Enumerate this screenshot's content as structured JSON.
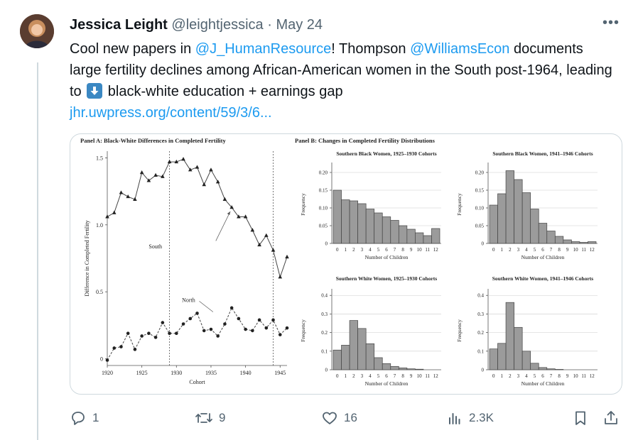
{
  "author": {
    "name": "Jessica Leight",
    "handle": "@leightjessica",
    "separator": "·",
    "date": "May 24"
  },
  "tweet": {
    "part1": "Cool new papers in ",
    "mention1": "@J_HumanResource",
    "part2": "!  Thompson ",
    "mention2": "@WilliamsEcon",
    "part3": " documents large fertility declines among African-American women in the South post-1964, leading to ",
    "part4": " black-white education + earnings gap",
    "link": "jhr.uwpress.org/content/59/3/6..."
  },
  "actions": {
    "replies": "1",
    "reposts": "9",
    "likes": "16",
    "views": "2.3K"
  },
  "icons": {
    "more": "more-icon",
    "reply": "reply-icon",
    "repost": "repost-icon",
    "like": "heart-icon",
    "views": "views-icon",
    "bookmark": "bookmark-icon",
    "share": "share-icon",
    "emoji": "down-arrow-emoji-icon"
  },
  "chart_data": [
    {
      "type": "line",
      "title": "Panel A: Black-White Differences in Completed Fertility",
      "xlabel": "Cohort",
      "ylabel": "Difference in Completed Fertility",
      "xlim": [
        1920,
        1946
      ],
      "ylim": [
        -0.05,
        1.55
      ],
      "xticks": [
        1920,
        1925,
        1930,
        1935,
        1940,
        1945
      ],
      "yticks": [
        0,
        0.5,
        1.0,
        1.5
      ],
      "ytick_labels": [
        "0",
        "0.5",
        "1.0",
        "1.5"
      ],
      "vlines": [
        1929,
        1944
      ],
      "x": [
        1920,
        1921,
        1922,
        1923,
        1924,
        1925,
        1926,
        1927,
        1928,
        1929,
        1930,
        1931,
        1932,
        1933,
        1934,
        1935,
        1936,
        1937,
        1938,
        1939,
        1940,
        1941,
        1942,
        1943,
        1944,
        1945,
        1946
      ],
      "series": [
        {
          "name": "South",
          "values": [
            1.06,
            1.09,
            1.24,
            1.21,
            1.19,
            1.39,
            1.33,
            1.37,
            1.36,
            1.47,
            1.47,
            1.49,
            1.41,
            1.43,
            1.3,
            1.41,
            1.32,
            1.19,
            1.13,
            1.06,
            1.06,
            0.96,
            0.85,
            0.92,
            0.81,
            0.61,
            0.76
          ]
        },
        {
          "name": "North",
          "values": [
            -0.01,
            0.08,
            0.09,
            0.19,
            0.07,
            0.17,
            0.19,
            0.16,
            0.27,
            0.19,
            0.19,
            0.26,
            0.3,
            0.34,
            0.21,
            0.22,
            0.17,
            0.26,
            0.38,
            0.3,
            0.22,
            0.21,
            0.29,
            0.23,
            0.29,
            0.18,
            0.23
          ]
        }
      ],
      "annotations": [
        {
          "text": "South",
          "x": 1933,
          "y": 0.84
        },
        {
          "text": "North",
          "x": 1934,
          "y": 0.44
        }
      ]
    },
    {
      "type": "bar",
      "panel_title": "Panel B: Changes in Completed Fertility Distributions",
      "title": "Southern Black Women, 1925–1930 Cohorts",
      "xlabel": "Number of Children",
      "ylabel": "Frequency",
      "categories": [
        "0",
        "1",
        "2",
        "3",
        "4",
        "5",
        "6",
        "7",
        "8",
        "9",
        "10",
        "11",
        "12"
      ],
      "values": [
        0.15,
        0.123,
        0.12,
        0.112,
        0.097,
        0.086,
        0.075,
        0.065,
        0.05,
        0.04,
        0.03,
        0.022,
        0.042
      ],
      "ylim": [
        0,
        0.22
      ],
      "yticks": [
        0,
        0.05,
        0.1,
        0.15,
        0.2
      ],
      "ytick_labels": [
        "0",
        "0.05",
        "0.10",
        "0.15",
        "0.20"
      ]
    },
    {
      "type": "bar",
      "title": "Southern Black Women, 1941–1946 Cohorts",
      "xlabel": "Number of Children",
      "ylabel": "Frequency",
      "categories": [
        "0",
        "1",
        "2",
        "3",
        "4",
        "5",
        "6",
        "7",
        "8",
        "9",
        "10",
        "11",
        "12"
      ],
      "values": [
        0.108,
        0.14,
        0.205,
        0.18,
        0.143,
        0.097,
        0.057,
        0.035,
        0.02,
        0.01,
        0.005,
        0.003,
        0.005
      ],
      "ylim": [
        0,
        0.22
      ],
      "yticks": [
        0,
        0.05,
        0.1,
        0.15,
        0.2
      ],
      "ytick_labels": [
        "0",
        "0.05",
        "0.10",
        "0.15",
        "0.20"
      ]
    },
    {
      "type": "bar",
      "title": "Southern White Women, 1925–1930 Cohorts",
      "xlabel": "Number of Children",
      "ylabel": "Frequency",
      "categories": [
        "0",
        "1",
        "2",
        "3",
        "4",
        "5",
        "6",
        "7",
        "8",
        "9",
        "10",
        "11",
        "12"
      ],
      "values": [
        0.106,
        0.132,
        0.265,
        0.222,
        0.14,
        0.065,
        0.033,
        0.018,
        0.01,
        0.005,
        0.003,
        0,
        0
      ],
      "ylim": [
        0,
        0.42
      ],
      "yticks": [
        0,
        0.1,
        0.2,
        0.3,
        0.4
      ],
      "ytick_labels": [
        "0",
        "0.1",
        "0.2",
        "0.3",
        "0.4"
      ]
    },
    {
      "type": "bar",
      "title": "Southern White Women, 1941–1946 Cohorts",
      "xlabel": "Number of Children",
      "ylabel": "Frequency",
      "categories": [
        "0",
        "1",
        "2",
        "3",
        "4",
        "5",
        "6",
        "7",
        "8",
        "9",
        "10",
        "11",
        "12"
      ],
      "values": [
        0.112,
        0.142,
        0.362,
        0.228,
        0.1,
        0.035,
        0.012,
        0.005,
        0.002,
        0,
        0,
        0,
        0
      ],
      "ylim": [
        0,
        0.42
      ],
      "yticks": [
        0,
        0.1,
        0.2,
        0.3,
        0.4
      ],
      "ytick_labels": [
        "0",
        "0.1",
        "0.2",
        "0.3",
        "0.4"
      ]
    }
  ]
}
